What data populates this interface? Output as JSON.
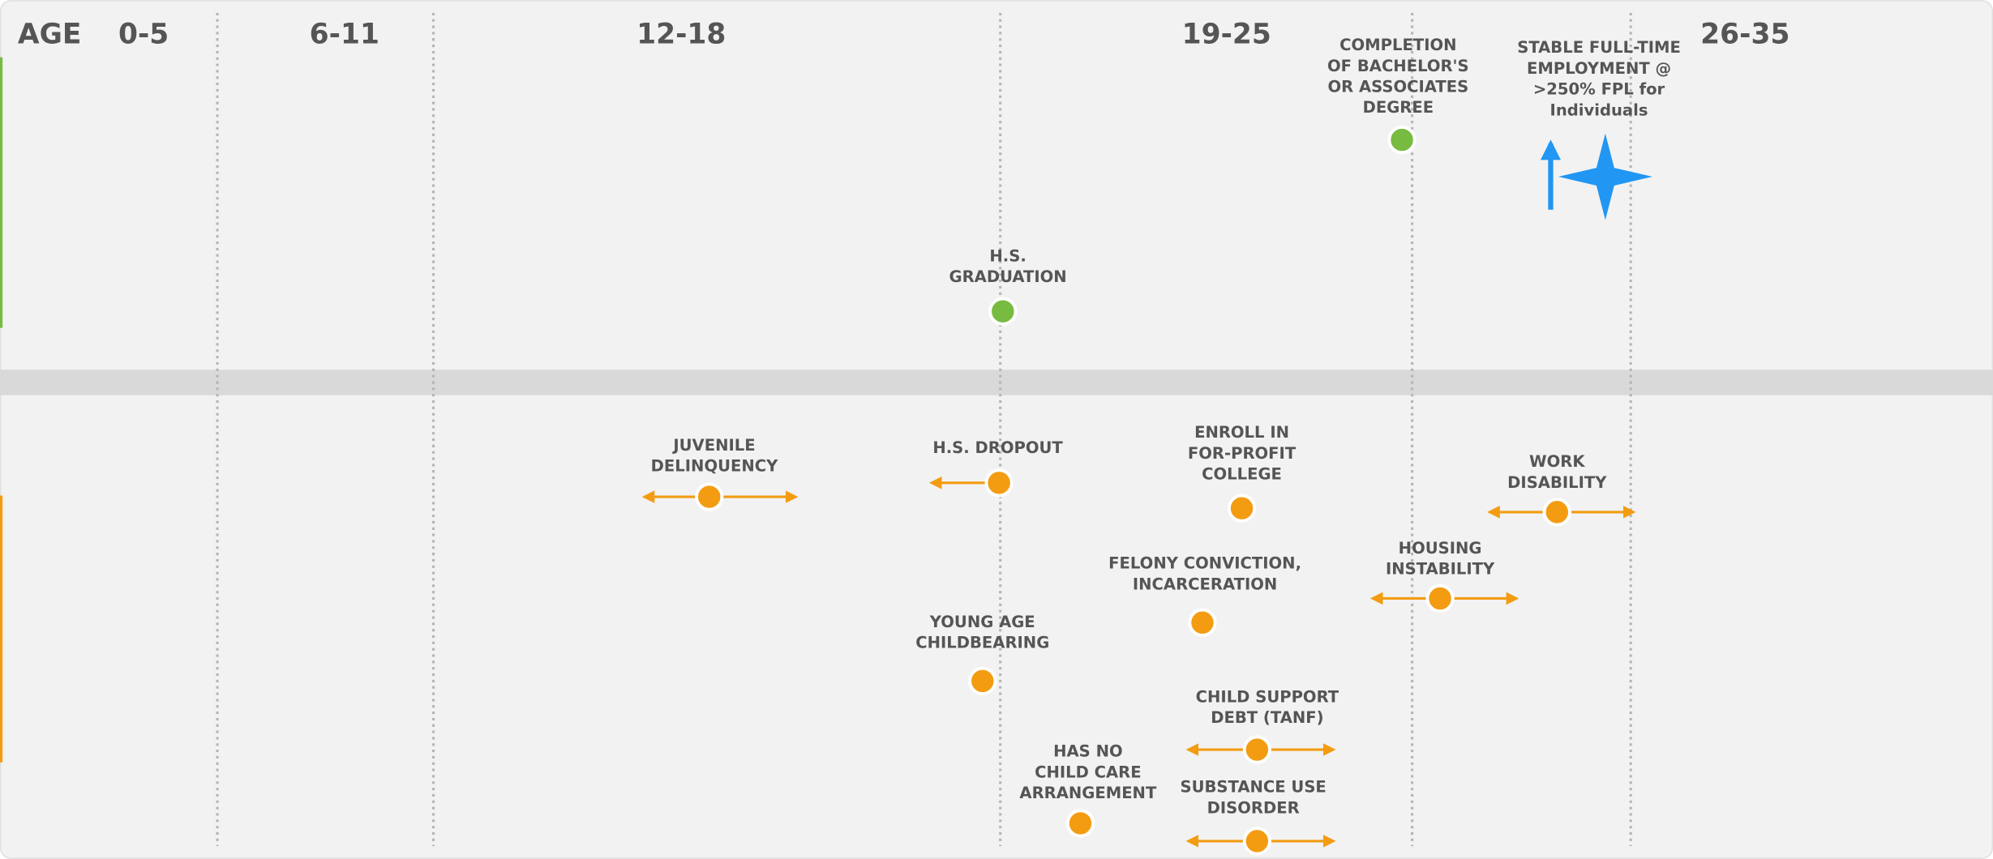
{
  "header": {
    "label": "AGE",
    "age_groups": [
      "0-5",
      "6-11",
      "12-18",
      "19-25",
      "26-35"
    ]
  },
  "positive_events": [
    {
      "lines": [
        "COMPLETION",
        "OF BACHELOR'S",
        "OR ASSOCIATES",
        "DEGREE"
      ]
    },
    {
      "lines": [
        "H.S.",
        "GRADUATION"
      ]
    }
  ],
  "goal": {
    "lines": [
      "STABLE FULL-TIME",
      "EMPLOYMENT @",
      ">250% FPL for",
      "Individuals"
    ]
  },
  "negative_events": [
    {
      "lines": [
        "JUVENILE",
        "DELINQUENCY"
      ]
    },
    {
      "lines": [
        "H.S. DROPOUT"
      ]
    },
    {
      "lines": [
        "ENROLL IN",
        "FOR-PROFIT",
        "COLLEGE"
      ]
    },
    {
      "lines": [
        "WORK",
        "DISABILITY"
      ]
    },
    {
      "lines": [
        "HOUSING",
        "INSTABILITY"
      ]
    },
    {
      "lines": [
        "FELONY CONVICTION,",
        "INCARCERATION"
      ]
    },
    {
      "lines": [
        "YOUNG AGE",
        "CHILDBEARING"
      ]
    },
    {
      "lines": [
        "CHILD SUPPORT",
        "DEBT (TANF)"
      ]
    },
    {
      "lines": [
        "HAS NO",
        "CHILD CARE",
        "ARRANGEMENT"
      ]
    },
    {
      "lines": [
        "SUBSTANCE USE",
        "DISORDER"
      ]
    }
  ]
}
